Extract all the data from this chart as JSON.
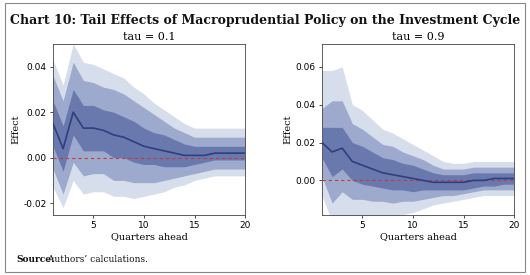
{
  "title": "Chart 10: Tail Effects of Macroprudential Policy on the Investment Cycle",
  "source_bold": "Source:",
  "source_rest": " Authors’ calculations.",
  "panel1_title": "tau = 0.1",
  "panel2_title": "tau = 0.9",
  "xlabel": "Quarters ahead",
  "ylabel": "Effect",
  "quarters": [
    1,
    2,
    3,
    4,
    5,
    6,
    7,
    8,
    9,
    10,
    11,
    12,
    13,
    14,
    15,
    16,
    17,
    18,
    19,
    20
  ],
  "tau01": {
    "median": [
      0.015,
      0.004,
      0.02,
      0.013,
      0.013,
      0.012,
      0.01,
      0.009,
      0.007,
      0.005,
      0.004,
      0.003,
      0.002,
      0.001,
      0.001,
      0.001,
      0.002,
      0.002,
      0.002,
      0.002
    ],
    "ci68_lo": [
      0.005,
      -0.006,
      0.01,
      0.003,
      0.003,
      0.003,
      0.0,
      0.0,
      -0.002,
      -0.003,
      -0.003,
      -0.004,
      -0.004,
      -0.004,
      -0.003,
      -0.002,
      -0.001,
      -0.001,
      -0.001,
      -0.001
    ],
    "ci68_hi": [
      0.025,
      0.014,
      0.03,
      0.023,
      0.023,
      0.021,
      0.02,
      0.018,
      0.016,
      0.013,
      0.011,
      0.01,
      0.008,
      0.006,
      0.005,
      0.005,
      0.005,
      0.005,
      0.005,
      0.005
    ],
    "ci90_lo": [
      -0.005,
      -0.016,
      -0.002,
      -0.008,
      -0.007,
      -0.007,
      -0.01,
      -0.01,
      -0.011,
      -0.011,
      -0.011,
      -0.01,
      -0.009,
      -0.008,
      -0.007,
      -0.006,
      -0.005,
      -0.005,
      -0.005,
      -0.005
    ],
    "ci90_hi": [
      0.036,
      0.025,
      0.042,
      0.034,
      0.033,
      0.031,
      0.03,
      0.028,
      0.025,
      0.022,
      0.019,
      0.016,
      0.013,
      0.011,
      0.009,
      0.009,
      0.009,
      0.009,
      0.009,
      0.009
    ],
    "ci95_lo": [
      -0.013,
      -0.022,
      -0.01,
      -0.016,
      -0.015,
      -0.015,
      -0.017,
      -0.017,
      -0.018,
      -0.017,
      -0.016,
      -0.015,
      -0.013,
      -0.012,
      -0.01,
      -0.009,
      -0.008,
      -0.008,
      -0.008,
      -0.008
    ],
    "ci95_hi": [
      0.043,
      0.032,
      0.05,
      0.042,
      0.041,
      0.039,
      0.037,
      0.035,
      0.031,
      0.028,
      0.024,
      0.021,
      0.018,
      0.015,
      0.013,
      0.013,
      0.013,
      0.013,
      0.013,
      0.013
    ],
    "ylim": [
      -0.025,
      0.05
    ],
    "yticks": [
      -0.02,
      0.0,
      0.02,
      0.04
    ]
  },
  "tau09": {
    "median": [
      0.02,
      0.015,
      0.017,
      0.01,
      0.008,
      0.006,
      0.004,
      0.003,
      0.002,
      0.001,
      0.0,
      -0.001,
      -0.001,
      -0.001,
      -0.001,
      0.0,
      0.0,
      0.001,
      0.001,
      0.001
    ],
    "ci68_lo": [
      0.012,
      0.002,
      0.006,
      0.0,
      -0.002,
      -0.003,
      -0.004,
      -0.005,
      -0.005,
      -0.006,
      -0.005,
      -0.005,
      -0.005,
      -0.005,
      -0.005,
      -0.004,
      -0.003,
      -0.003,
      -0.002,
      -0.002
    ],
    "ci68_hi": [
      0.028,
      0.028,
      0.028,
      0.02,
      0.018,
      0.015,
      0.012,
      0.011,
      0.009,
      0.008,
      0.006,
      0.004,
      0.003,
      0.003,
      0.003,
      0.004,
      0.004,
      0.004,
      0.004,
      0.004
    ],
    "ci90_lo": [
      0.002,
      -0.012,
      -0.006,
      -0.01,
      -0.01,
      -0.011,
      -0.011,
      -0.012,
      -0.011,
      -0.011,
      -0.01,
      -0.009,
      -0.008,
      -0.008,
      -0.007,
      -0.006,
      -0.005,
      -0.005,
      -0.005,
      -0.005
    ],
    "ci90_hi": [
      0.038,
      0.042,
      0.042,
      0.03,
      0.027,
      0.023,
      0.019,
      0.018,
      0.015,
      0.013,
      0.011,
      0.008,
      0.006,
      0.006,
      0.006,
      0.007,
      0.007,
      0.007,
      0.007,
      0.007
    ],
    "ci95_lo": [
      -0.008,
      -0.022,
      -0.018,
      -0.02,
      -0.02,
      -0.02,
      -0.019,
      -0.019,
      -0.018,
      -0.017,
      -0.015,
      -0.013,
      -0.012,
      -0.011,
      -0.01,
      -0.009,
      -0.008,
      -0.008,
      -0.008,
      -0.008
    ],
    "ci95_hi": [
      0.058,
      0.058,
      0.06,
      0.04,
      0.037,
      0.032,
      0.027,
      0.025,
      0.022,
      0.019,
      0.016,
      0.013,
      0.01,
      0.009,
      0.009,
      0.01,
      0.01,
      0.01,
      0.01,
      0.01
    ],
    "ylim": [
      -0.018,
      0.072
    ],
    "yticks": [
      0.0,
      0.02,
      0.04,
      0.06
    ]
  },
  "line_color": "#2e3f7f",
  "band_color_inner": "#5565a0",
  "band_color_mid": "#6e7fb5",
  "band_color_outer": "#9aaacf",
  "inner_alpha": 0.7,
  "mid_alpha": 0.55,
  "outer_alpha": 0.4,
  "zero_line_color": "#cc3333",
  "bg_color": "#ffffff",
  "outer_bg": "#ffffff",
  "title_fontsize": 9,
  "label_fontsize": 7,
  "tick_fontsize": 6.5,
  "subtitle_fontsize": 8
}
